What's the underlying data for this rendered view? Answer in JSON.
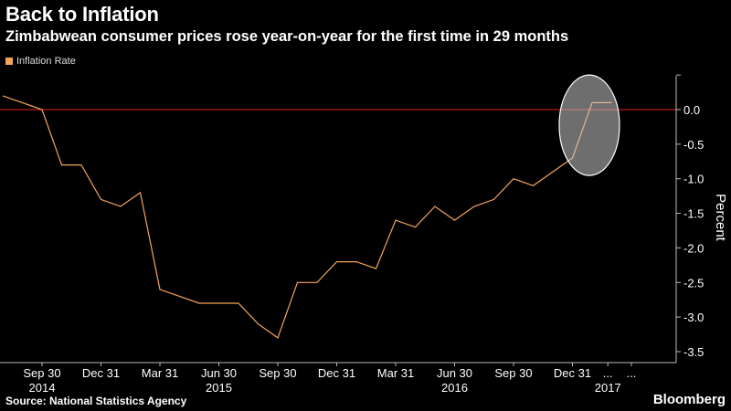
{
  "header": {
    "title": "Back to Inflation",
    "subtitle": "Zimbabwean consumer prices rose year-on-year for the first time in 29 months"
  },
  "footer": {
    "source": "Source: National Statistics Agency",
    "brand": "Bloomberg"
  },
  "chart_data": {
    "type": "line",
    "ylabel": "Percent",
    "ylim": [
      -3.5,
      0.5
    ],
    "yticks": [
      -3.5,
      -3.0,
      -2.5,
      -2.0,
      -1.5,
      -1.0,
      -0.5,
      0.0
    ],
    "ytick_labels": [
      "-3.5",
      "-3.0",
      "-2.5",
      "-2.0",
      "-1.5",
      "-1.0",
      "-0.5",
      "0.0"
    ],
    "axis_side": "right",
    "reference_line": {
      "y": 0.0,
      "color": "#e02020"
    },
    "xticks": [
      {
        "label": "Sep 30",
        "x": 1
      },
      {
        "label": "Dec 31",
        "x": 4
      },
      {
        "label": "Mar 31",
        "x": 7
      },
      {
        "label": "Jun 30",
        "x": 10
      },
      {
        "label": "Sep 30",
        "x": 13
      },
      {
        "label": "Dec 31",
        "x": 16
      },
      {
        "label": "Mar 31",
        "x": 19
      },
      {
        "label": "Jun 30",
        "x": 22
      },
      {
        "label": "Sep 30",
        "x": 25
      },
      {
        "label": "Dec 31",
        "x": 28
      },
      {
        "label": "...",
        "x": 29.8
      },
      {
        "label": "...",
        "x": 31
      }
    ],
    "year_labels": [
      {
        "label": "2014",
        "x": 1
      },
      {
        "label": "2015",
        "x": 10
      },
      {
        "label": "2016",
        "x": 22
      },
      {
        "label": "2017",
        "x": 29.8
      }
    ],
    "series": [
      {
        "name": "Inflation Rate",
        "color": "#f5a55a",
        "x": [
          -1,
          1,
          2,
          3,
          4,
          5,
          6,
          7,
          8,
          9,
          10,
          11,
          12,
          13,
          14,
          15,
          16,
          17,
          18,
          19,
          20,
          21,
          22,
          23,
          24,
          25,
          26,
          27,
          28,
          29,
          30
        ],
        "values": [
          0.2,
          0.0,
          -0.8,
          -0.8,
          -1.3,
          -1.4,
          -1.2,
          -2.6,
          -2.7,
          -2.8,
          -2.8,
          -2.8,
          -3.1,
          -3.3,
          -2.5,
          -2.5,
          -2.2,
          -2.2,
          -2.3,
          -1.6,
          -1.7,
          -1.4,
          -1.6,
          -1.4,
          -1.3,
          -1.0,
          -1.1,
          -0.9,
          -0.7,
          0.1,
          0.1
        ]
      }
    ],
    "highlight": {
      "x": 29,
      "y": -0.2
    }
  }
}
